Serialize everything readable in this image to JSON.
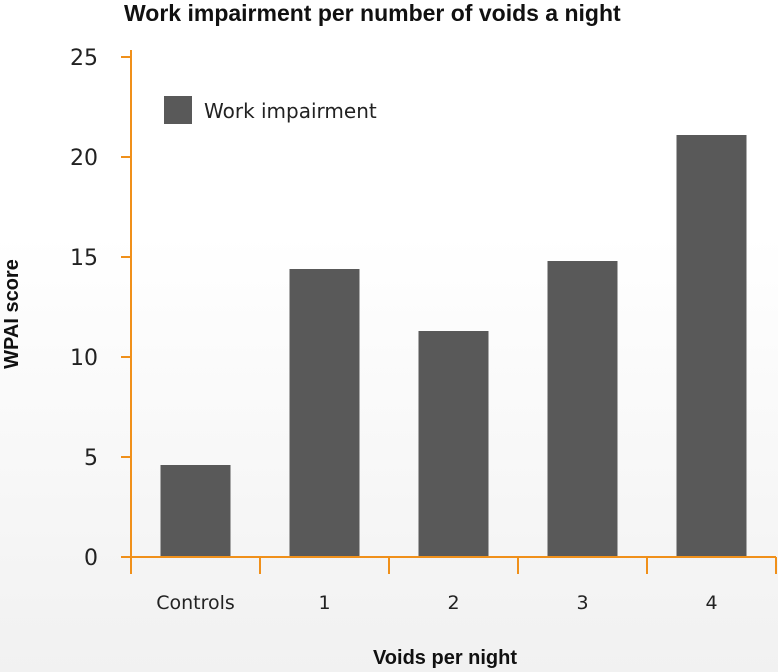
{
  "chart_data": {
    "type": "bar",
    "title": "Work impairment per number of voids a night",
    "xlabel": "Voids per night",
    "ylabel": "WPAI score",
    "categories": [
      "Controls",
      "1",
      "2",
      "3",
      "4"
    ],
    "series": [
      {
        "name": "Work impairment",
        "values": [
          4.6,
          14.4,
          11.3,
          14.8,
          21.1
        ]
      }
    ],
    "ylim": [
      0,
      25
    ],
    "yticks": [
      "0",
      "5",
      "10",
      "15",
      "20",
      "25"
    ],
    "grid": false,
    "legend": "top-left",
    "colors": {
      "bar": "#595959",
      "axis": "#f0901a"
    }
  }
}
